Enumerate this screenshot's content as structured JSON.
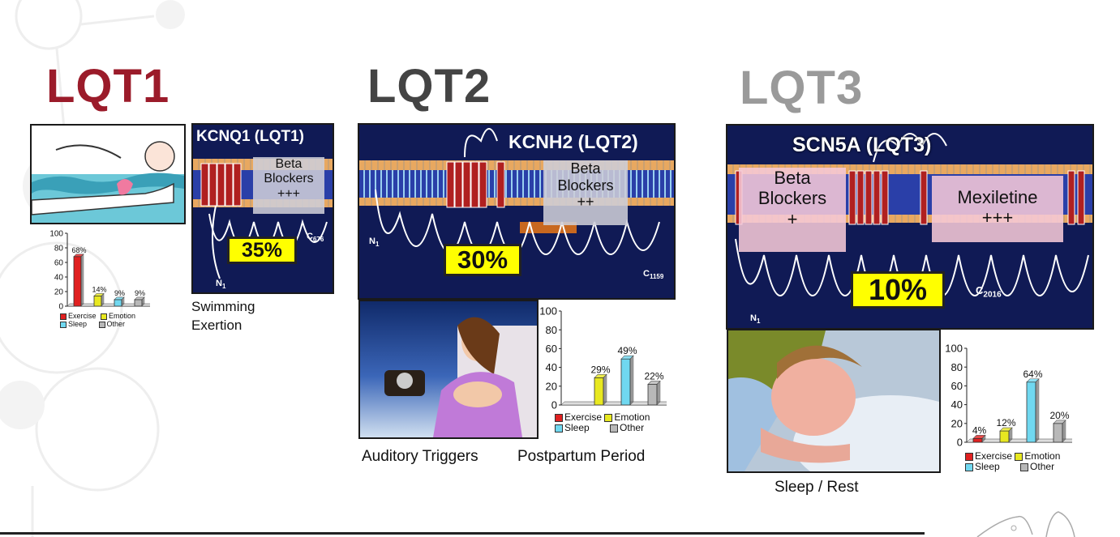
{
  "sections": [
    {
      "heading": "LQT1",
      "heading_color": "#9b1b2a",
      "panel_title": "KCNQ1 (LQT1)",
      "drug": {
        "line1": "Beta",
        "line2": "Blockers",
        "effect": "+++"
      },
      "percent": "35%",
      "n_label": "N",
      "n_sub": "1",
      "c_label": "C",
      "c_sub": "676",
      "captions": [
        "Swimming",
        "Exertion"
      ],
      "chart_data": {
        "type": "bar",
        "categories": [
          "Exercise",
          "Emotion",
          "Sleep",
          "Other"
        ],
        "values": [
          68,
          14,
          9,
          9
        ],
        "value_labels": [
          "68%",
          "14%",
          "9%",
          "9%"
        ],
        "ylim": [
          0,
          100
        ],
        "yticks": [
          0,
          20,
          40,
          60,
          80,
          100
        ],
        "colors": [
          "#e02020",
          "#e8e820",
          "#70d8f0",
          "#b8b8b8"
        ]
      }
    },
    {
      "heading": "LQT2",
      "heading_color": "#444444",
      "panel_title": "KCNH2 (LQT2)",
      "drug": {
        "line1": "Beta",
        "line2": "Blockers",
        "effect": "++"
      },
      "percent": "30%",
      "n_label": "N",
      "n_sub": "1",
      "c_label": "C",
      "c_sub": "1159",
      "captions": [
        "Auditory Triggers",
        "Postpartum Period"
      ],
      "chart_data": {
        "type": "bar",
        "categories": [
          "Exercise",
          "Emotion",
          "Sleep",
          "Other"
        ],
        "values": [
          0,
          29,
          49,
          22
        ],
        "value_labels": [
          "",
          "29%",
          "49%",
          "22%"
        ],
        "ylim": [
          0,
          100
        ],
        "yticks": [
          0,
          20,
          40,
          60,
          80,
          100
        ],
        "colors": [
          "#e02020",
          "#e8e820",
          "#70d8f0",
          "#b8b8b8"
        ]
      }
    },
    {
      "heading": "LQT3",
      "heading_color": "#9a9a9a",
      "panel_title": "SCN5A (LQT3)",
      "drug": {
        "line1": "Beta",
        "line2": "Blockers",
        "effect": "+"
      },
      "drug2": {
        "line1": "Mexiletine",
        "effect": "+++"
      },
      "percent": "10%",
      "n_label": "N",
      "n_sub": "1",
      "c_label": "C",
      "c_sub": "2016",
      "captions": [
        "Sleep / Rest"
      ],
      "chart_data": {
        "type": "bar",
        "categories": [
          "Exercise",
          "Emotion",
          "Sleep",
          "Other"
        ],
        "values": [
          4,
          12,
          64,
          20
        ],
        "value_labels": [
          "4%",
          "12%",
          "64%",
          "20%"
        ],
        "ylim": [
          0,
          100
        ],
        "yticks": [
          0,
          20,
          40,
          60,
          80,
          100
        ],
        "colors": [
          "#e02020",
          "#e8e820",
          "#70d8f0",
          "#b8b8b8"
        ]
      }
    }
  ]
}
